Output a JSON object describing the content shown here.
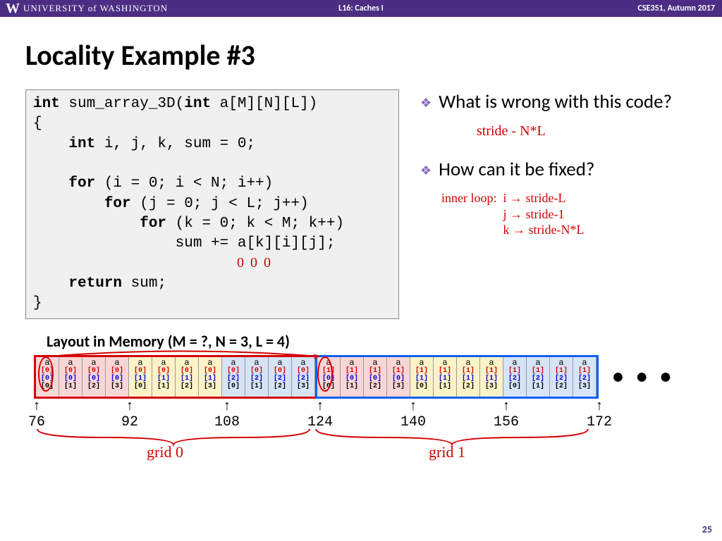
{
  "header": {
    "logo_text": "UNIVERSITY of WASHINGTON",
    "center": "L16:  Caches I",
    "right": "CSE351, Autumn 2017"
  },
  "title": "Locality Example #3",
  "code": {
    "l1a": "int",
    "l1b": " sum_array_3D(",
    "l1c": "int",
    "l1d": " a[M][N][L])",
    "l2": "{",
    "l3a": "    int",
    "l3b": " i, j, k, sum = 0;",
    "l4": "",
    "l5a": "    for",
    "l5b": " (i = 0; i < N; i++)",
    "l6a": "        for",
    "l6b": " (j = 0; j < L; j++)",
    "l7a": "            for",
    "l7b": " (k = 0; k < M; k++)",
    "l8": "                sum += a[k][i][j];",
    "l9": "",
    "l10a": "    return",
    "l10b": " sum;",
    "l11": "}"
  },
  "bullets": {
    "b1": "What is wrong with this code?",
    "b2": "How can it be fixed?"
  },
  "annotations": {
    "stride": "stride - N*L",
    "inner_label": "inner loop:",
    "inner_i": "i → stride-L",
    "inner_j": "j → stride-1",
    "inner_k": "k → stride-N*L",
    "zeros": "0   0   0",
    "grid0": "grid 0",
    "grid1": "grid 1"
  },
  "mem": {
    "header": "Layout in Memory (M = ?, N = 3, L = 4)",
    "dots": "• • •",
    "k_vals": [
      "[0]",
      "[0]",
      "[0]",
      "[0]",
      "[0]",
      "[0]",
      "[0]",
      "[0]",
      "[0]",
      "[0]",
      "[0]",
      "[0]",
      "[1]",
      "[1]",
      "[1]",
      "[1]",
      "[1]",
      "[1]",
      "[1]",
      "[1]",
      "[1]",
      "[1]",
      "[1]",
      "[1]"
    ],
    "i_vals": [
      "[0]",
      "[0]",
      "[0]",
      "[0]",
      "[1]",
      "[1]",
      "[1]",
      "[1]",
      "[2]",
      "[2]",
      "[2]",
      "[2]",
      "[0]",
      "[0]",
      "[0]",
      "[0]",
      "[1]",
      "[1]",
      "[1]",
      "[1]",
      "[2]",
      "[2]",
      "[2]",
      "[2]"
    ],
    "j_vals": [
      "[0]",
      "[1]",
      "[2]",
      "[3]",
      "[0]",
      "[1]",
      "[2]",
      "[3]",
      "[0]",
      "[1]",
      "[2]",
      "[3]",
      "[0]",
      "[1]",
      "[2]",
      "[3]",
      "[0]",
      "[1]",
      "[2]",
      "[3]",
      "[0]",
      "[1]",
      "[2]",
      "[3]"
    ],
    "sect_colors": [
      "pink",
      "yellow",
      "bluebg",
      "pink",
      "yellow",
      "bluebg"
    ],
    "addrs": [
      "76",
      "92",
      "108",
      "124",
      "140",
      "156",
      "172"
    ],
    "addr_pos": [
      0,
      132,
      264,
      396,
      528,
      660,
      792
    ]
  },
  "pageno": "25"
}
